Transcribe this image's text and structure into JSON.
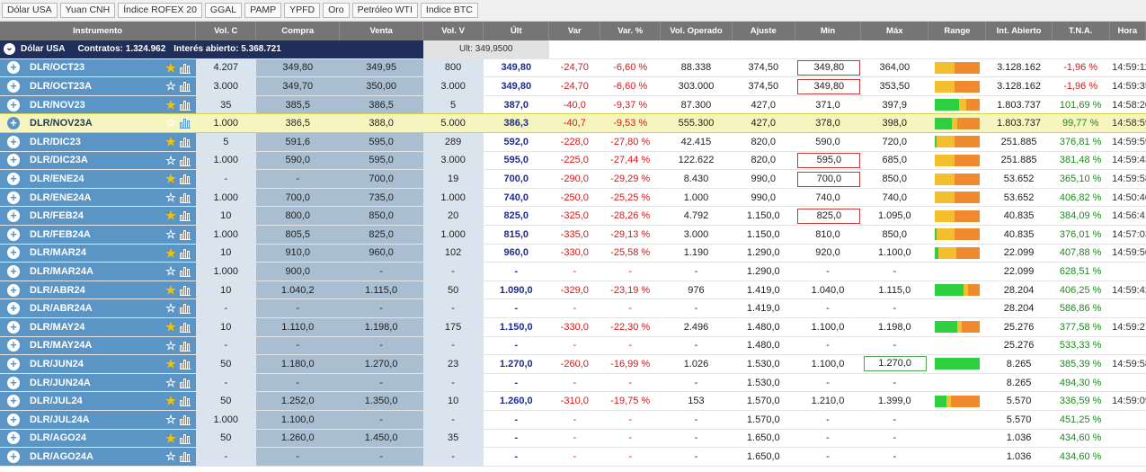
{
  "topnav": [
    "Dólar USA",
    "Yuan CNH",
    "Índice ROFEX 20",
    "GGAL",
    "PAMP",
    "YPFD",
    "Oro",
    "Petróleo WTI",
    "Indice BTC"
  ],
  "columns": [
    "Instrumento",
    "Vol. C",
    "Compra",
    "Venta",
    "Vol. V",
    "Últ",
    "Var",
    "Var. %",
    "Vol. Operado",
    "Ajuste",
    "Mín",
    "Máx",
    "Range",
    "Int. Abierto",
    "T.N.A.",
    "Hora"
  ],
  "summary": {
    "title": "Dólar USA",
    "contratos": "Contratos: 1.324.962",
    "interes": "Interés abierto: 5.368.721",
    "ult": "Ult: 349,9500"
  },
  "colors": {
    "instr": "#5b95c5",
    "neg": "#d11a1a",
    "pos": "#1a8c1a",
    "ult": "#1e2d8f",
    "highlight": "#f7f5bf"
  },
  "rows": [
    {
      "name": "DLR/OCT23",
      "star": true,
      "volc": "4.207",
      "compra": "349,80",
      "venta": "349,95",
      "volv": "800",
      "ult": "349,80",
      "var": "-24,70",
      "varp": "-6,60 %",
      "vol": "88.338",
      "ajuste": "374,50",
      "min": "349,80",
      "minBox": "red",
      "max": "364,00",
      "maxBox": "",
      "range": {
        "g": 0,
        "y": 0.45
      },
      "int": "3.128.162",
      "tna": "-1,96 %",
      "tnaNeg": true,
      "hora": "14:59:11",
      "hl": false
    },
    {
      "name": "DLR/OCT23A",
      "star": false,
      "volc": "3.000",
      "compra": "349,70",
      "venta": "350,00",
      "volv": "3.000",
      "ult": "349,80",
      "var": "-24,70",
      "varp": "-6,60 %",
      "vol": "303.000",
      "ajuste": "374,50",
      "min": "349,80",
      "minBox": "red",
      "max": "353,50",
      "maxBox": "",
      "range": {
        "g": 0,
        "y": 0.45
      },
      "int": "3.128.162",
      "tna": "-1,96 %",
      "tnaNeg": true,
      "hora": "14:59:35",
      "hl": false
    },
    {
      "name": "DLR/NOV23",
      "star": true,
      "volc": "35",
      "compra": "385,5",
      "venta": "386,5",
      "volv": "5",
      "ult": "387,0",
      "var": "-40,0",
      "varp": "-9,37 %",
      "vol": "87.300",
      "ajuste": "427,0",
      "min": "371,0",
      "minBox": "",
      "max": "397,9",
      "maxBox": "",
      "range": {
        "g": 0.55,
        "y": 0.15
      },
      "int": "1.803.737",
      "tna": "101,69 %",
      "tnaNeg": false,
      "hora": "14:58:20",
      "hl": false
    },
    {
      "name": "DLR/NOV23A",
      "star": false,
      "volc": "1.000",
      "compra": "386,5",
      "venta": "388,0",
      "volv": "5.000",
      "ult": "386,3",
      "var": "-40,7",
      "varp": "-9,53 %",
      "vol": "555.300",
      "ajuste": "427,0",
      "min": "378,0",
      "minBox": "",
      "max": "398,0",
      "maxBox": "",
      "range": {
        "g": 0.38,
        "y": 0.12
      },
      "int": "1.803.737",
      "tna": "99,77 %",
      "tnaNeg": false,
      "hora": "14:58:59",
      "hl": true
    },
    {
      "name": "DLR/DIC23",
      "star": true,
      "volc": "5",
      "compra": "591,6",
      "venta": "595,0",
      "volv": "289",
      "ult": "592,0",
      "var": "-228,0",
      "varp": "-27,80 %",
      "vol": "42.415",
      "ajuste": "820,0",
      "min": "590,0",
      "minBox": "",
      "max": "720,0",
      "maxBox": "",
      "range": {
        "g": 0.04,
        "y": 0.4
      },
      "int": "251.885",
      "tna": "376,81 %",
      "tnaNeg": false,
      "hora": "14:59:59",
      "hl": false
    },
    {
      "name": "DLR/DIC23A",
      "star": false,
      "volc": "1.000",
      "compra": "590,0",
      "venta": "595,0",
      "volv": "3.000",
      "ult": "595,0",
      "var": "-225,0",
      "varp": "-27,44 %",
      "vol": "122.622",
      "ajuste": "820,0",
      "min": "595,0",
      "minBox": "red",
      "max": "685,0",
      "maxBox": "",
      "range": {
        "g": 0,
        "y": 0.45
      },
      "int": "251.885",
      "tna": "381,48 %",
      "tnaNeg": false,
      "hora": "14:59:43",
      "hl": false
    },
    {
      "name": "DLR/ENE24",
      "star": true,
      "volc": "-",
      "compra": "-",
      "venta": "700,0",
      "volv": "19",
      "ult": "700,0",
      "var": "-290,0",
      "varp": "-29,29 %",
      "vol": "8.430",
      "ajuste": "990,0",
      "min": "700,0",
      "minBox": "red",
      "max": "850,0",
      "maxBox": "",
      "range": {
        "g": 0,
        "y": 0.45
      },
      "int": "53.652",
      "tna": "365,10 %",
      "tnaNeg": false,
      "hora": "14:59:58",
      "hl": false
    },
    {
      "name": "DLR/ENE24A",
      "star": false,
      "volc": "1.000",
      "compra": "700,0",
      "venta": "735,0",
      "volv": "1.000",
      "ult": "740,0",
      "var": "-250,0",
      "varp": "-25,25 %",
      "vol": "1.000",
      "ajuste": "990,0",
      "min": "740,0",
      "minBox": "",
      "max": "740,0",
      "maxBox": "",
      "range": {
        "g": 0,
        "y": 0.45
      },
      "int": "53.652",
      "tna": "406,82 %",
      "tnaNeg": false,
      "hora": "14:50:40",
      "hl": false
    },
    {
      "name": "DLR/FEB24",
      "star": true,
      "volc": "10",
      "compra": "800,0",
      "venta": "850,0",
      "volv": "20",
      "ult": "825,0",
      "var": "-325,0",
      "varp": "-28,26 %",
      "vol": "4.792",
      "ajuste": "1.150,0",
      "min": "825,0",
      "minBox": "red",
      "max": "1.095,0",
      "maxBox": "",
      "range": {
        "g": 0,
        "y": 0.45
      },
      "int": "40.835",
      "tna": "384,09 %",
      "tnaNeg": false,
      "hora": "14:56:41",
      "hl": false
    },
    {
      "name": "DLR/FEB24A",
      "star": false,
      "volc": "1.000",
      "compra": "805,5",
      "venta": "825,0",
      "volv": "1.000",
      "ult": "815,0",
      "var": "-335,0",
      "varp": "-29,13 %",
      "vol": "3.000",
      "ajuste": "1.150,0",
      "min": "810,0",
      "minBox": "",
      "max": "850,0",
      "maxBox": "",
      "range": {
        "g": 0.04,
        "y": 0.4
      },
      "int": "40.835",
      "tna": "376,01 %",
      "tnaNeg": false,
      "hora": "14:57:03",
      "hl": false
    },
    {
      "name": "DLR/MAR24",
      "star": true,
      "volc": "10",
      "compra": "910,0",
      "venta": "960,0",
      "volv": "102",
      "ult": "960,0",
      "var": "-330,0",
      "varp": "-25,58 %",
      "vol": "1.190",
      "ajuste": "1.290,0",
      "min": "920,0",
      "minBox": "",
      "max": "1.100,0",
      "maxBox": "",
      "range": {
        "g": 0.08,
        "y": 0.4
      },
      "int": "22.099",
      "tna": "407,88 %",
      "tnaNeg": false,
      "hora": "14:59:50",
      "hl": false
    },
    {
      "name": "DLR/MAR24A",
      "star": false,
      "volc": "1.000",
      "compra": "900,0",
      "venta": "-",
      "volv": "-",
      "ult": "-",
      "var": "-",
      "varp": "-",
      "vol": "-",
      "ajuste": "1.290,0",
      "min": "-",
      "minBox": "",
      "max": "-",
      "maxBox": "",
      "range": null,
      "int": "22.099",
      "tna": "628,51 %",
      "tnaNeg": false,
      "hora": "",
      "hl": false
    },
    {
      "name": "DLR/ABR24",
      "star": true,
      "volc": "10",
      "compra": "1.040,2",
      "venta": "1.115,0",
      "volv": "50",
      "ult": "1.090,0",
      "var": "-329,0",
      "varp": "-23,19 %",
      "vol": "976",
      "ajuste": "1.419,0",
      "min": "1.040,0",
      "minBox": "",
      "max": "1.115,0",
      "maxBox": "",
      "range": {
        "g": 0.65,
        "y": 0.1
      },
      "int": "28.204",
      "tna": "406,25 %",
      "tnaNeg": false,
      "hora": "14:59:42",
      "hl": false
    },
    {
      "name": "DLR/ABR24A",
      "star": false,
      "volc": "-",
      "compra": "-",
      "venta": "-",
      "volv": "-",
      "ult": "-",
      "var": "-",
      "varp": "-",
      "vol": "-",
      "ajuste": "1.419,0",
      "min": "-",
      "minBox": "",
      "max": "-",
      "maxBox": "",
      "range": null,
      "int": "28.204",
      "tna": "586,86 %",
      "tnaNeg": false,
      "hora": "",
      "hl": false
    },
    {
      "name": "DLR/MAY24",
      "star": true,
      "volc": "10",
      "compra": "1.110,0",
      "venta": "1.198,0",
      "volv": "175",
      "ult": "1.150,0",
      "var": "-330,0",
      "varp": "-22,30 %",
      "vol": "2.496",
      "ajuste": "1.480,0",
      "min": "1.100,0",
      "minBox": "",
      "max": "1.198,0",
      "maxBox": "",
      "range": {
        "g": 0.5,
        "y": 0.1
      },
      "int": "25.276",
      "tna": "377,58 %",
      "tnaNeg": false,
      "hora": "14:59:27",
      "hl": false
    },
    {
      "name": "DLR/MAY24A",
      "star": false,
      "volc": "-",
      "compra": "-",
      "venta": "-",
      "volv": "-",
      "ult": "-",
      "var": "-",
      "varp": "-",
      "vol": "-",
      "ajuste": "1.480,0",
      "min": "-",
      "minBox": "",
      "max": "-",
      "maxBox": "",
      "range": null,
      "int": "25.276",
      "tna": "533,33 %",
      "tnaNeg": false,
      "hora": "",
      "hl": false
    },
    {
      "name": "DLR/JUN24",
      "star": true,
      "volc": "50",
      "compra": "1.180,0",
      "venta": "1.270,0",
      "volv": "23",
      "ult": "1.270,0",
      "var": "-260,0",
      "varp": "-16,99 %",
      "vol": "1.026",
      "ajuste": "1.530,0",
      "min": "1.100,0",
      "minBox": "",
      "max": "1.270,0",
      "maxBox": "green",
      "range": {
        "g": 1,
        "y": 0
      },
      "int": "8.265",
      "tna": "385,39 %",
      "tnaNeg": false,
      "hora": "14:59:58",
      "hl": false
    },
    {
      "name": "DLR/JUN24A",
      "star": false,
      "volc": "-",
      "compra": "-",
      "venta": "-",
      "volv": "-",
      "ult": "-",
      "var": "-",
      "varp": "-",
      "vol": "-",
      "ajuste": "1.530,0",
      "min": "-",
      "minBox": "",
      "max": "-",
      "maxBox": "",
      "range": null,
      "int": "8.265",
      "tna": "494,30 %",
      "tnaNeg": false,
      "hora": "",
      "hl": false
    },
    {
      "name": "DLR/JUL24",
      "star": true,
      "volc": "50",
      "compra": "1.252,0",
      "venta": "1.350,0",
      "volv": "10",
      "ult": "1.260,0",
      "var": "-310,0",
      "varp": "-19,75 %",
      "vol": "153",
      "ajuste": "1.570,0",
      "min": "1.210,0",
      "minBox": "",
      "max": "1.399,0",
      "maxBox": "",
      "range": {
        "g": 0.26,
        "y": 0.1
      },
      "int": "5.570",
      "tna": "336,59 %",
      "tnaNeg": false,
      "hora": "14:59:09",
      "hl": false
    },
    {
      "name": "DLR/JUL24A",
      "star": false,
      "volc": "1.000",
      "compra": "1.100,0",
      "venta": "-",
      "volv": "-",
      "ult": "-",
      "var": "-",
      "varp": "-",
      "vol": "-",
      "ajuste": "1.570,0",
      "min": "-",
      "minBox": "",
      "max": "-",
      "maxBox": "",
      "range": null,
      "int": "5.570",
      "tna": "451,25 %",
      "tnaNeg": false,
      "hora": "",
      "hl": false
    },
    {
      "name": "DLR/AGO24",
      "star": true,
      "volc": "50",
      "compra": "1.260,0",
      "venta": "1.450,0",
      "volv": "35",
      "ult": "-",
      "var": "-",
      "varp": "-",
      "vol": "-",
      "ajuste": "1.650,0",
      "min": "-",
      "minBox": "",
      "max": "-",
      "maxBox": "",
      "range": null,
      "int": "1.036",
      "tna": "434,60 %",
      "tnaNeg": false,
      "hora": "",
      "hl": false
    },
    {
      "name": "DLR/AGO24A",
      "star": false,
      "volc": "-",
      "compra": "-",
      "venta": "-",
      "volv": "-",
      "ult": "-",
      "var": "-",
      "varp": "-",
      "vol": "-",
      "ajuste": "1.650,0",
      "min": "-",
      "minBox": "",
      "max": "-",
      "maxBox": "",
      "range": null,
      "int": "1.036",
      "tna": "434,60 %",
      "tnaNeg": false,
      "hora": "",
      "hl": false
    }
  ]
}
